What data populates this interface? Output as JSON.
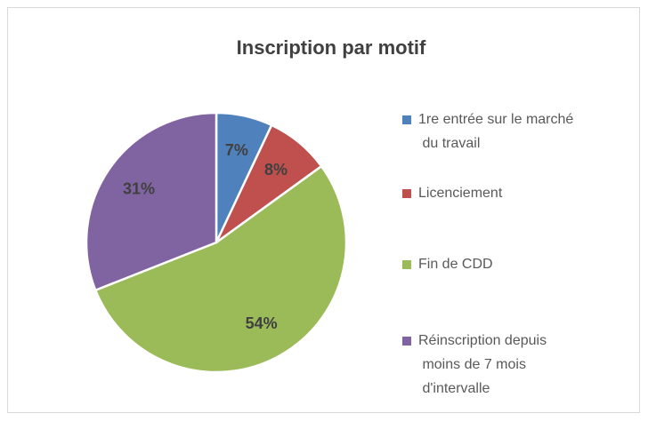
{
  "chart_data": {
    "type": "pie",
    "title": "Inscription par motif",
    "categories": [
      "1re entrée sur le marché du travail",
      "Licenciement",
      "Fin de CDD",
      "Réinscription depuis moins de 7 mois d'intervalle"
    ],
    "values": [
      7,
      8,
      54,
      31
    ],
    "value_labels": [
      "7%",
      "8%",
      "54%",
      "31%"
    ],
    "colors": [
      "#4f81bd",
      "#c0504d",
      "#9bbb59",
      "#8064a2"
    ],
    "legend": "right"
  }
}
